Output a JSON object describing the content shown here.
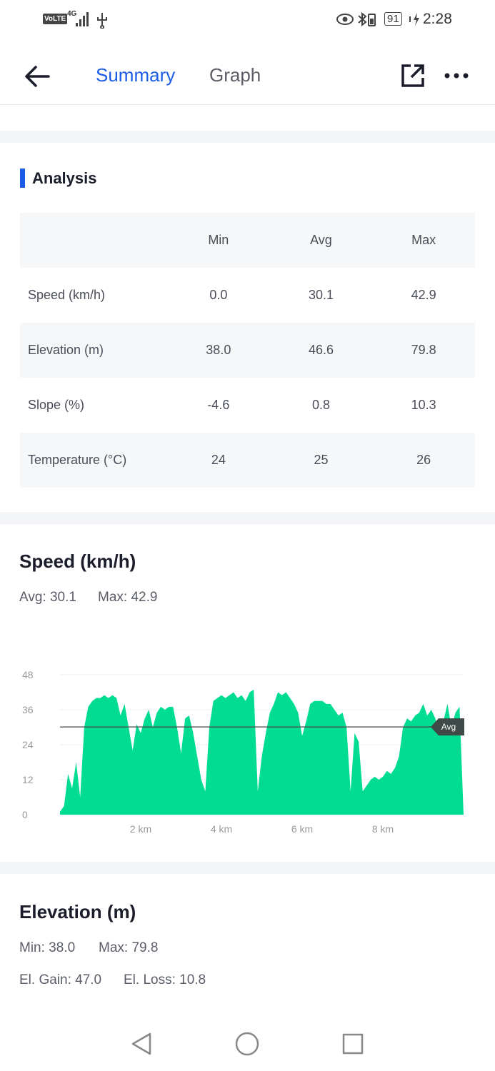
{
  "status_bar": {
    "volte": "VoLTE",
    "network": "4G",
    "battery": "91",
    "time": "2:28"
  },
  "header": {
    "tabs": [
      "Summary",
      "Graph"
    ]
  },
  "analysis": {
    "title": "Analysis",
    "columns": [
      "Min",
      "Avg",
      "Max"
    ],
    "rows": [
      [
        "Speed (km/h)",
        "0.0",
        "30.1",
        "42.9"
      ],
      [
        "Elevation (m)",
        "38.0",
        "46.6",
        "79.8"
      ],
      [
        "Slope (%)",
        "-4.6",
        "0.8",
        "10.3"
      ],
      [
        "Temperature (°C)",
        "24",
        "25",
        "26"
      ]
    ]
  },
  "speed": {
    "title": "Speed (km/h)",
    "stats": [
      "Avg: 30.1",
      "Max: 42.9"
    ]
  },
  "chart_data": {
    "type": "area",
    "color": "#00dd92",
    "x": [
      0,
      0.1,
      0.2,
      0.3,
      0.4,
      0.5,
      0.6,
      0.7,
      0.8,
      0.9,
      1,
      1.1,
      1.2,
      1.3,
      1.4,
      1.5,
      1.6,
      1.7,
      1.8,
      1.9,
      2,
      2.1,
      2.2,
      2.3,
      2.4,
      2.5,
      2.6,
      2.7,
      2.8,
      2.9,
      3,
      3.1,
      3.2,
      3.3,
      3.4,
      3.5,
      3.6,
      3.7,
      3.8,
      3.9,
      4,
      4.1,
      4.2,
      4.3,
      4.4,
      4.5,
      4.6,
      4.7,
      4.8,
      4.9,
      5,
      5.1,
      5.2,
      5.3,
      5.4,
      5.5,
      5.6,
      5.7,
      5.8,
      5.9,
      6,
      6.1,
      6.2,
      6.3,
      6.4,
      6.5,
      6.6,
      6.7,
      6.8,
      6.9,
      7,
      7.1,
      7.2,
      7.3,
      7.4,
      7.5,
      7.6,
      7.7,
      7.8,
      7.9,
      8,
      8.1,
      8.2,
      8.3,
      8.4,
      8.5,
      8.6,
      8.7,
      8.8,
      8.9,
      9,
      9.1,
      9.2,
      9.3,
      9.4,
      9.5,
      9.6,
      9.7,
      9.8,
      9.9,
      10
    ],
    "series": [
      {
        "values": [
          1,
          3,
          14,
          9,
          18,
          6,
          30,
          37,
          39,
          40,
          40,
          41,
          40,
          41,
          40,
          34,
          38,
          30,
          22,
          31,
          28,
          33,
          36,
          30,
          35,
          37,
          36,
          37,
          37,
          30,
          21,
          33,
          34,
          28,
          20,
          12,
          8,
          30,
          39,
          40,
          41,
          40,
          41,
          42,
          40,
          41,
          39,
          42,
          42.9,
          8,
          20,
          28,
          35,
          38,
          42,
          41,
          42,
          40,
          38,
          35,
          27,
          32,
          38,
          39,
          39,
          39,
          38,
          38,
          36,
          34,
          35,
          30,
          8,
          28,
          25,
          8,
          10,
          12,
          13,
          12,
          13,
          15,
          14,
          16,
          20,
          30,
          33,
          32,
          34,
          35,
          38,
          34,
          36,
          33,
          28,
          32,
          38,
          30,
          35,
          37,
          0
        ]
      }
    ],
    "xlim": [
      0,
      10
    ],
    "ylim": [
      0,
      48
    ],
    "xticks": [
      {
        "value": 2,
        "label": "2 km"
      },
      {
        "value": 4,
        "label": "4 km"
      },
      {
        "value": 6,
        "label": "6 km"
      },
      {
        "value": 8,
        "label": "8 km"
      }
    ],
    "yticks": [
      0,
      12,
      24,
      36,
      48
    ],
    "grid": true,
    "avg_line": {
      "value": 30.1,
      "label": "Avg"
    }
  },
  "elevation": {
    "title": "Elevation (m)",
    "stats": [
      "Min: 38.0",
      "Max: 79.8",
      "El. Gain: 47.0",
      "El. Loss: 10.8"
    ]
  }
}
